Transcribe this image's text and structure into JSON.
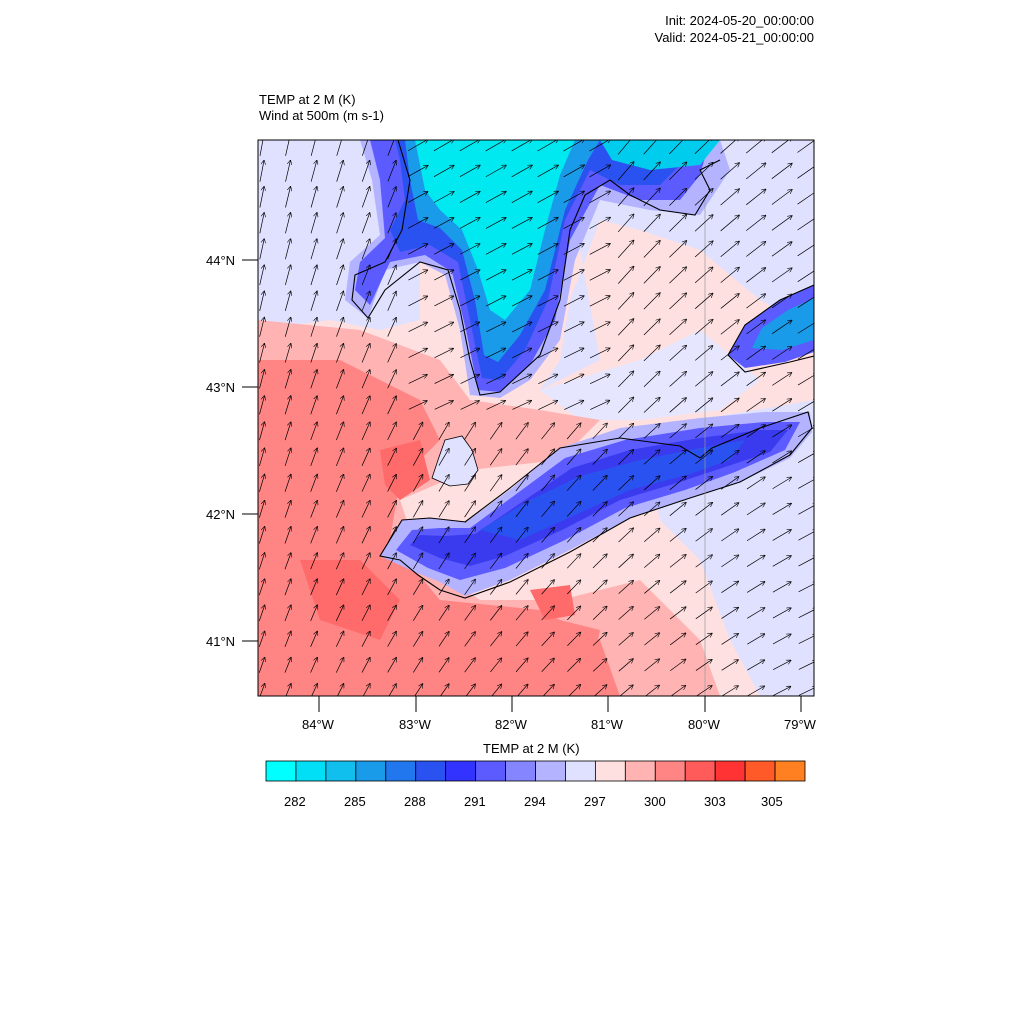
{
  "header": {
    "init": "Init: 2024-05-20_00:00:00",
    "valid": "Valid: 2024-05-21_00:00:00"
  },
  "titles": {
    "field": "TEMP at 2 M   (K)",
    "wind": "Wind at 500m   (m s-1)"
  },
  "axes": {
    "lat_labels": [
      "44°N",
      "43°N",
      "42°N",
      "41°N"
    ],
    "lon_labels": [
      "84°W",
      "83°W",
      "82°W",
      "81°W",
      "80°W",
      "79°W"
    ]
  },
  "colorbar": {
    "title": "TEMP at 2 M  (K)",
    "labels": [
      "282",
      "285",
      "288",
      "291",
      "294",
      "297",
      "300",
      "303",
      "305"
    ],
    "colors": [
      "#00ffff",
      "#00dff5",
      "#10bfee",
      "#1a9be9",
      "#2177ee",
      "#2a52f0",
      "#3333ff",
      "#5b5bff",
      "#8585ff",
      "#b3b3ff",
      "#e0e0ff",
      "#ffe0e0",
      "#ffb3b3",
      "#ff8585",
      "#ff5b5b",
      "#ff3333",
      "#ff5a28",
      "#ff8020"
    ]
  },
  "colors": {
    "lake_cold": "#00f0f0",
    "lake_mid": "#2a52f0",
    "land_warm": "#ff8585",
    "land_mild": "#ffe0e0",
    "land_cool": "#e0e0ff"
  }
}
